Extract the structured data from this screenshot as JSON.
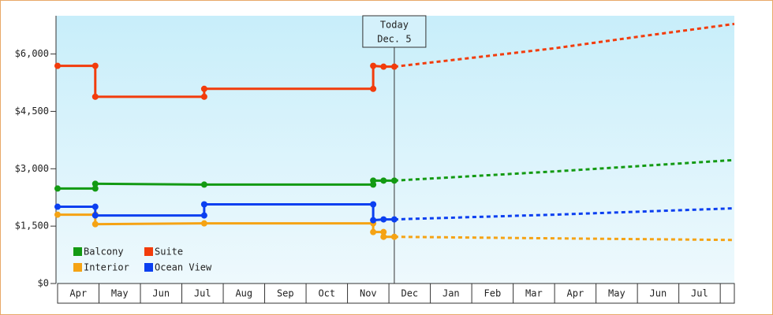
{
  "chart_data": {
    "type": "step-line",
    "xlim": [
      0,
      16.34
    ],
    "xticks": [
      {
        "value": 0.5,
        "label": "Apr"
      },
      {
        "value": 1.5,
        "label": "May"
      },
      {
        "value": 2.5,
        "label": "Jun"
      },
      {
        "value": 3.5,
        "label": "Jul"
      },
      {
        "value": 4.5,
        "label": "Aug"
      },
      {
        "value": 5.5,
        "label": "Sep"
      },
      {
        "value": 6.5,
        "label": "Oct"
      },
      {
        "value": 7.5,
        "label": "Nov"
      },
      {
        "value": 8.5,
        "label": "Dec"
      },
      {
        "value": 9.5,
        "label": "Jan"
      },
      {
        "value": 10.5,
        "label": "Feb"
      },
      {
        "value": 11.5,
        "label": "Mar"
      },
      {
        "value": 12.5,
        "label": "Apr"
      },
      {
        "value": 13.5,
        "label": "May"
      },
      {
        "value": 14.5,
        "label": "Jun"
      },
      {
        "value": 15.5,
        "label": "Jul"
      }
    ],
    "ylim": [
      0,
      7000
    ],
    "yticks": [
      {
        "value": 0,
        "label": "$0"
      },
      {
        "value": 1500,
        "label": "$1,500"
      },
      {
        "value": 3000,
        "label": "$3,000"
      },
      {
        "value": 4500,
        "label": "$4,500"
      },
      {
        "value": 6000,
        "label": "$6,000"
      }
    ],
    "today": {
      "x": 8.13,
      "label": [
        "Today",
        "Dec. 5"
      ]
    },
    "legend": "bottom-left",
    "series": [
      {
        "name": "Balcony",
        "color": "#139a13",
        "x": [
          0,
          0.91,
          0.91,
          3.54,
          7.62,
          7.62,
          7.87,
          8.13
        ],
        "values": [
          2483,
          2483,
          2607,
          2586,
          2586,
          2690,
          2690,
          2690
        ],
        "forecast": {
          "x": [
            8.13,
            12,
            16.34
          ],
          "values": [
            2690,
            2930,
            3228
          ]
        }
      },
      {
        "name": "Suite",
        "color": "#f23c0c",
        "x": [
          0,
          0.91,
          0.91,
          3.54,
          3.54,
          7.62,
          7.62,
          7.87,
          8.13
        ],
        "values": [
          5690,
          5690,
          4883,
          4883,
          5090,
          5090,
          5690,
          5669,
          5669
        ],
        "forecast": {
          "x": [
            8.13,
            10,
            12,
            14,
            16.34
          ],
          "values": [
            5669,
            5900,
            6150,
            6450,
            6786
          ]
        }
      },
      {
        "name": "Interior",
        "color": "#f5a314",
        "x": [
          0,
          0.91,
          0.91,
          3.54,
          7.62,
          7.62,
          7.87,
          7.87,
          8.13
        ],
        "values": [
          1800,
          1800,
          1552,
          1572,
          1572,
          1345,
          1345,
          1221,
          1221
        ],
        "forecast": {
          "x": [
            8.13,
            12,
            16.34
          ],
          "values": [
            1221,
            1180,
            1138
          ]
        }
      },
      {
        "name": "Ocean View",
        "color": "#0b3ff0",
        "x": [
          0,
          0.91,
          0.91,
          3.54,
          3.54,
          7.62,
          7.62,
          7.87,
          8.13
        ],
        "values": [
          2007,
          2007,
          1779,
          1779,
          2069,
          2069,
          1655,
          1676,
          1676
        ],
        "forecast": {
          "x": [
            8.13,
            12,
            16.34
          ],
          "values": [
            1676,
            1800,
            1966
          ]
        }
      }
    ]
  }
}
